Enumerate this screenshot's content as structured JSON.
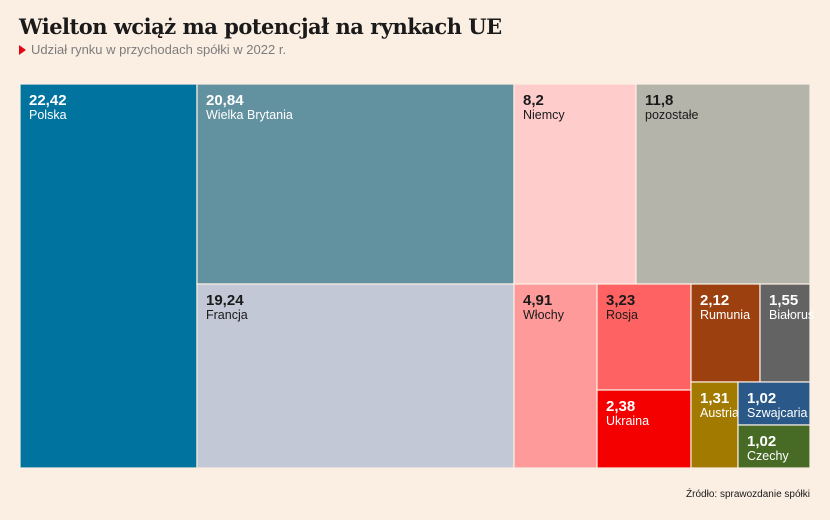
{
  "title": "Wielton wciąż ma potencjał na rynkach UE",
  "subtitle": "Udział rynku w przychodach spółki w 2022 r.",
  "source": "Źródło: sprawozdanie spółki",
  "chart_data": {
    "type": "treemap",
    "items": [
      {
        "name": "Polska",
        "value": 22.42,
        "value_label": "22,42",
        "color": "#00749e",
        "text_color": "#ffffff"
      },
      {
        "name": "Wielka Brytania",
        "value": 20.84,
        "value_label": "20,84",
        "color": "#6291a0",
        "text_color": "#ffffff"
      },
      {
        "name": "Francja",
        "value": 19.24,
        "value_label": "19,24",
        "color": "#c3c8d7",
        "text_color": "#1a1a1a"
      },
      {
        "name": "Niemcy",
        "value": 8.2,
        "value_label": "8,2",
        "color": "#ffcccc",
        "text_color": "#1a1a1a"
      },
      {
        "name": "pozostałe",
        "value": 11.8,
        "value_label": "11,8",
        "color": "#b4b4aa",
        "text_color": "#1a1a1a"
      },
      {
        "name": "Włochy",
        "value": 4.91,
        "value_label": "4,91",
        "color": "#ff9a9a",
        "text_color": "#1a1a1a"
      },
      {
        "name": "Rosja",
        "value": 3.23,
        "value_label": "3,23",
        "color": "#ff6262",
        "text_color": "#1a1a1a"
      },
      {
        "name": "Ukraina",
        "value": 2.38,
        "value_label": "2,38",
        "color": "#f50000",
        "text_color": "#ffffff"
      },
      {
        "name": "Rumunia",
        "value": 2.12,
        "value_label": "2,12",
        "color": "#9c4010",
        "text_color": "#ffffff"
      },
      {
        "name": "Białoruś",
        "value": 1.55,
        "value_label": "1,55",
        "color": "#636363",
        "text_color": "#ffffff"
      },
      {
        "name": "Austria",
        "value": 1.31,
        "value_label": "1,31",
        "color": "#a27a00",
        "text_color": "#ffffff"
      },
      {
        "name": "Szwajcaria",
        "value": 1.02,
        "value_label": "1,02",
        "color": "#2a5889",
        "text_color": "#ffffff"
      },
      {
        "name": "Czechy",
        "value": 1.02,
        "value_label": "1,02",
        "color": "#476b25",
        "text_color": "#ffffff"
      }
    ]
  }
}
